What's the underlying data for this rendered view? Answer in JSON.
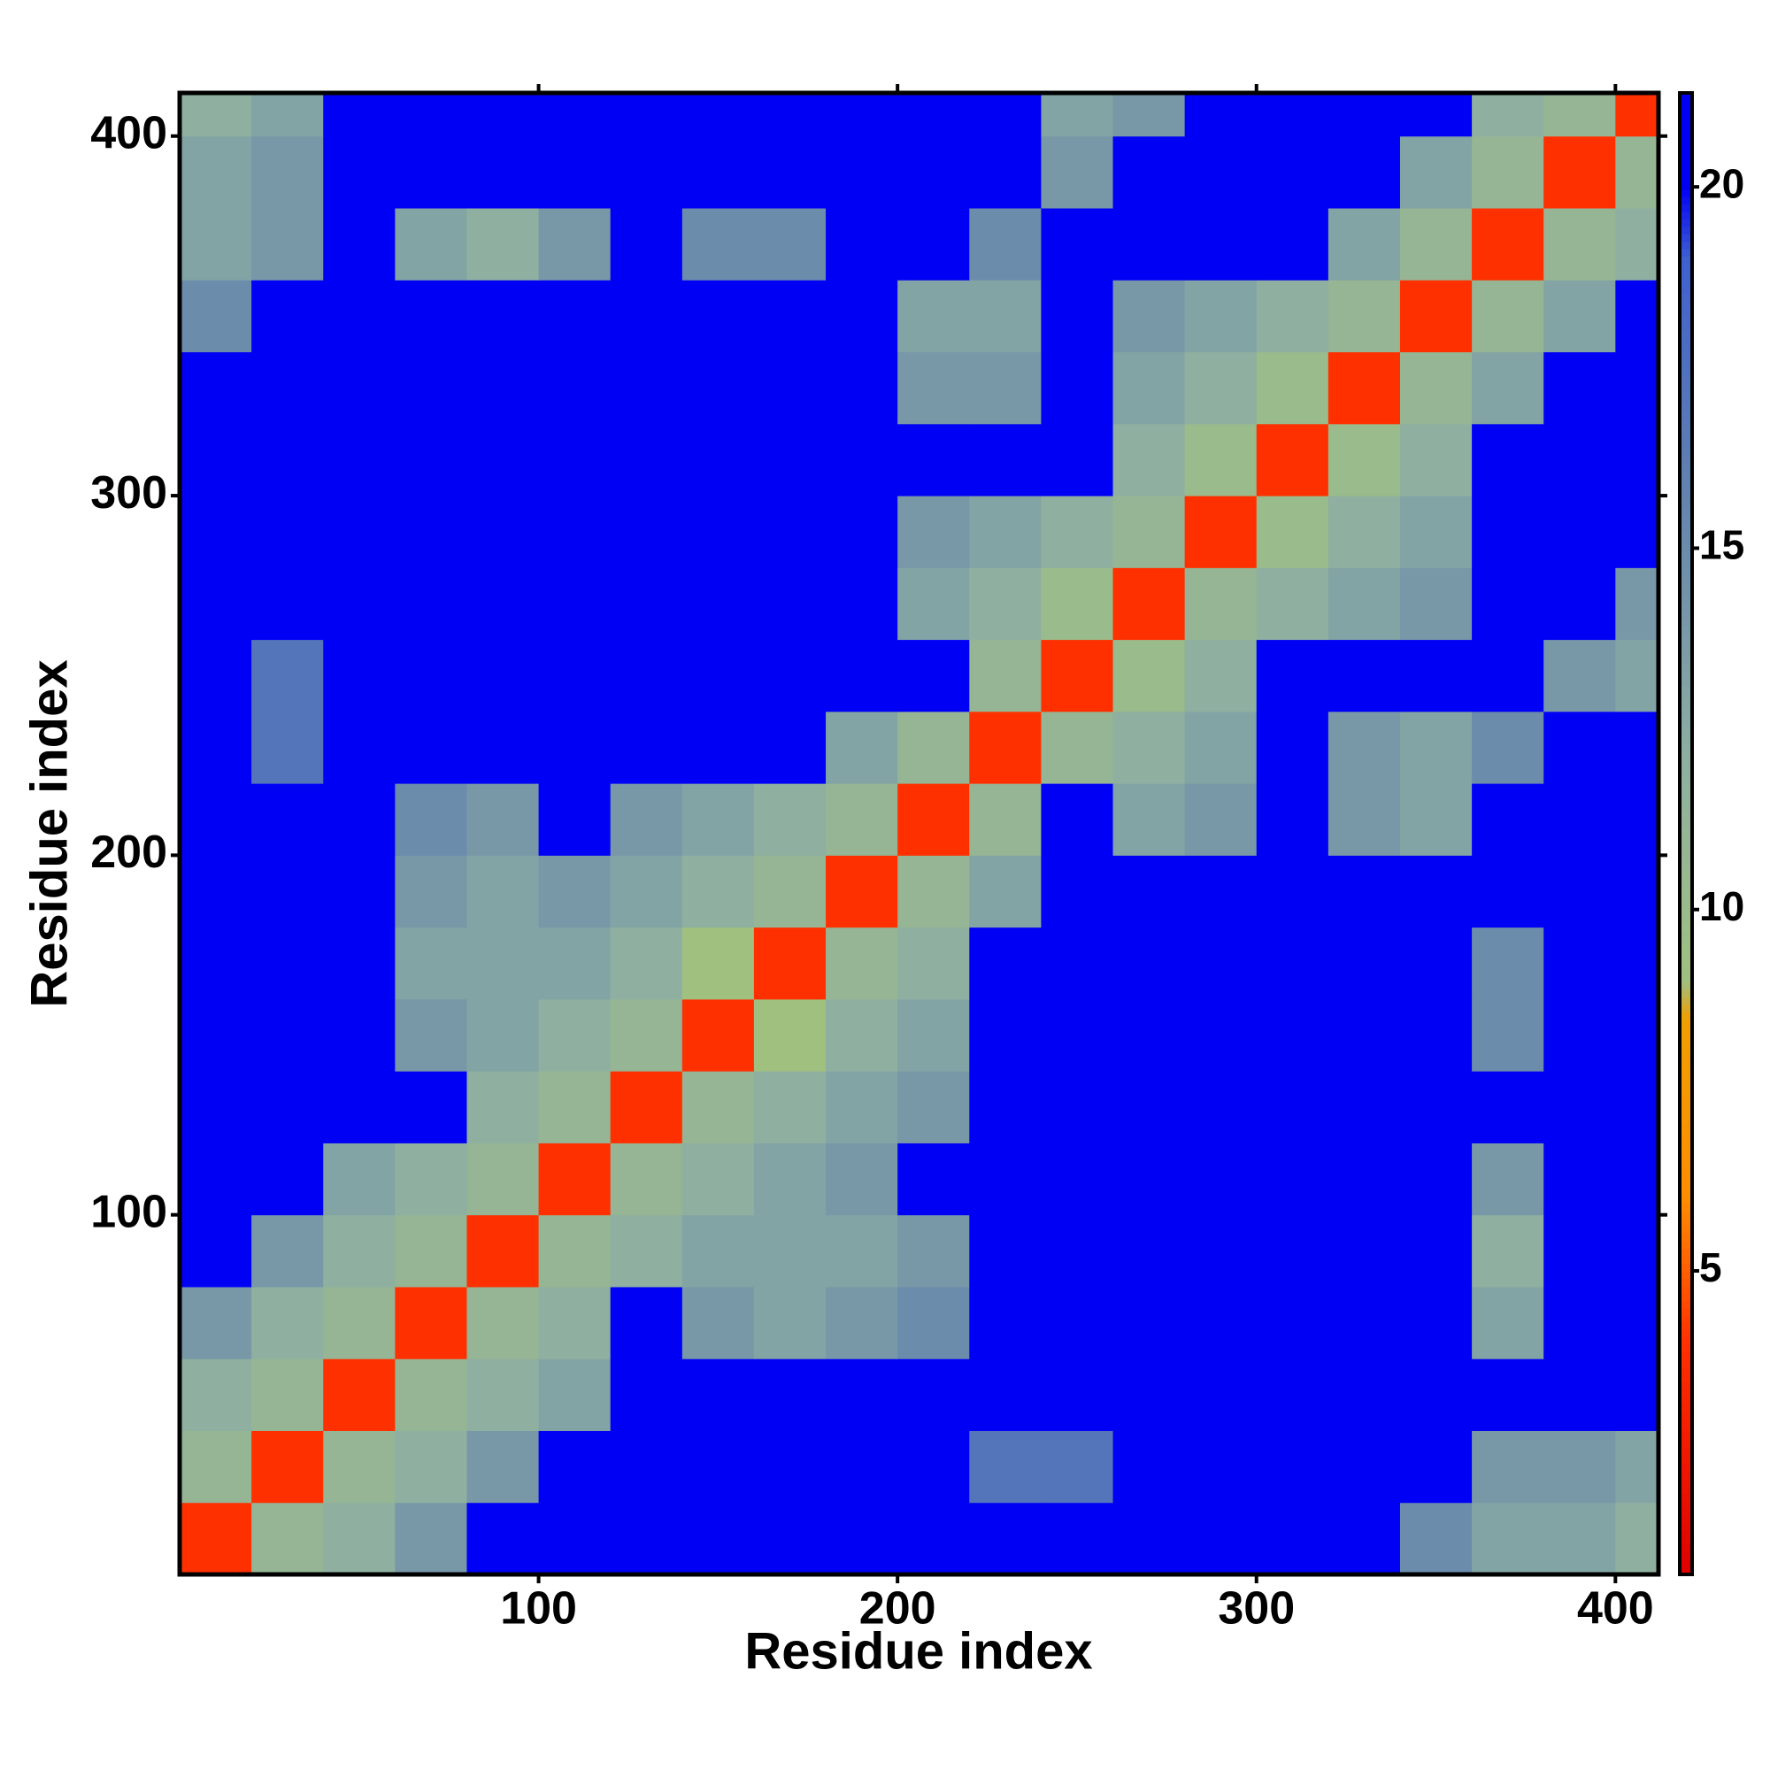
{
  "chart_data": {
    "type": "heatmap",
    "x_label": "Residue index",
    "y_label": "Residue index",
    "bins": [
      0,
      20,
      40,
      60,
      80,
      100,
      120,
      140,
      160,
      180,
      200,
      220,
      240,
      260,
      280,
      300,
      320,
      340,
      360,
      380,
      400,
      412
    ],
    "values": [
      [
        4,
        11,
        12,
        14,
        21,
        21,
        21,
        21,
        21,
        21,
        21,
        21,
        21,
        21,
        21,
        21,
        21,
        15,
        13,
        13,
        12
      ],
      [
        11,
        4,
        11,
        12,
        14,
        21,
        21,
        21,
        21,
        21,
        21,
        17,
        17,
        21,
        21,
        21,
        21,
        21,
        14,
        14,
        13
      ],
      [
        12,
        11,
        4,
        11,
        12,
        13,
        21,
        21,
        21,
        21,
        21,
        21,
        21,
        21,
        21,
        21,
        21,
        21,
        21,
        21,
        21
      ],
      [
        14,
        12,
        11,
        4,
        11,
        12,
        21,
        14,
        13,
        14,
        15,
        21,
        21,
        21,
        21,
        21,
        21,
        21,
        13,
        21,
        21
      ],
      [
        21,
        14,
        12,
        11,
        4,
        11,
        12,
        13,
        13,
        13,
        14,
        21,
        21,
        21,
        21,
        21,
        21,
        21,
        12,
        21,
        21
      ],
      [
        21,
        21,
        13,
        12,
        11,
        4,
        11,
        12,
        13,
        14,
        21,
        21,
        21,
        21,
        21,
        21,
        21,
        21,
        14,
        21,
        21
      ],
      [
        21,
        21,
        21,
        21,
        12,
        11,
        4,
        11,
        12,
        13,
        14,
        21,
        21,
        21,
        21,
        21,
        21,
        21,
        21,
        21,
        21
      ],
      [
        21,
        21,
        21,
        14,
        13,
        12,
        11,
        4,
        9,
        12,
        13,
        21,
        21,
        21,
        21,
        21,
        21,
        21,
        15,
        21,
        21
      ],
      [
        21,
        21,
        21,
        13,
        13,
        13,
        12,
        9,
        4,
        11,
        12,
        21,
        21,
        21,
        21,
        21,
        21,
        21,
        15,
        21,
        21
      ],
      [
        21,
        21,
        21,
        14,
        13,
        14,
        13,
        12,
        11,
        4,
        11,
        13,
        21,
        21,
        21,
        21,
        21,
        21,
        21,
        21,
        21
      ],
      [
        21,
        21,
        21,
        15,
        14,
        21,
        14,
        13,
        12,
        11,
        4,
        11,
        21,
        13,
        14,
        21,
        14,
        13,
        21,
        21,
        21
      ],
      [
        21,
        17,
        21,
        21,
        21,
        21,
        21,
        21,
        21,
        13,
        11,
        4,
        11,
        12,
        13,
        21,
        14,
        13,
        15,
        21,
        21
      ],
      [
        21,
        17,
        21,
        21,
        21,
        21,
        21,
        21,
        21,
        21,
        21,
        11,
        4,
        10,
        12,
        21,
        21,
        21,
        21,
        14,
        13
      ],
      [
        21,
        21,
        21,
        21,
        21,
        21,
        21,
        21,
        21,
        21,
        13,
        12,
        10,
        4,
        11,
        12,
        13,
        14,
        21,
        21,
        14
      ],
      [
        21,
        21,
        21,
        21,
        21,
        21,
        21,
        21,
        21,
        21,
        14,
        13,
        12,
        11,
        4,
        10,
        12,
        13,
        21,
        21,
        21
      ],
      [
        21,
        21,
        21,
        21,
        21,
        21,
        21,
        21,
        21,
        21,
        21,
        21,
        21,
        12,
        10,
        4,
        10,
        12,
        21,
        21,
        21
      ],
      [
        21,
        21,
        21,
        21,
        21,
        21,
        21,
        21,
        21,
        21,
        14,
        14,
        21,
        13,
        12,
        10,
        4,
        11,
        13,
        21,
        21
      ],
      [
        15,
        21,
        21,
        21,
        21,
        21,
        21,
        21,
        21,
        21,
        13,
        13,
        21,
        14,
        13,
        12,
        11,
        4,
        11,
        13,
        21
      ],
      [
        13,
        14,
        21,
        13,
        12,
        14,
        21,
        15,
        15,
        21,
        21,
        15,
        21,
        21,
        21,
        21,
        13,
        11,
        4,
        11,
        12
      ],
      [
        13,
        14,
        21,
        21,
        21,
        21,
        21,
        21,
        21,
        21,
        21,
        21,
        14,
        21,
        21,
        21,
        21,
        13,
        11,
        4,
        11
      ],
      [
        12,
        13,
        21,
        21,
        21,
        21,
        21,
        21,
        21,
        21,
        21,
        21,
        13,
        14,
        21,
        21,
        21,
        21,
        12,
        11,
        4
      ]
    ],
    "xlim": [
      0,
      412
    ],
    "ylim": [
      0,
      412
    ],
    "xticks": [
      100,
      200,
      300,
      400
    ],
    "yticks": [
      100,
      200,
      300,
      400
    ],
    "clim": [
      0.8,
      21.3
    ],
    "cticks": [
      5,
      10,
      15,
      20
    ],
    "colorscale": [
      [
        0.8,
        "#e00000"
      ],
      [
        4,
        "#ff3000"
      ],
      [
        6,
        "#ff8c00"
      ],
      [
        8.5,
        "#f0a000"
      ],
      [
        9,
        "#a0c080"
      ],
      [
        12,
        "#8fb0a0"
      ],
      [
        16,
        "#6080b0"
      ],
      [
        19,
        "#4060d0"
      ],
      [
        20,
        "#0000f5"
      ],
      [
        21.3,
        "#0000f5"
      ]
    ]
  }
}
